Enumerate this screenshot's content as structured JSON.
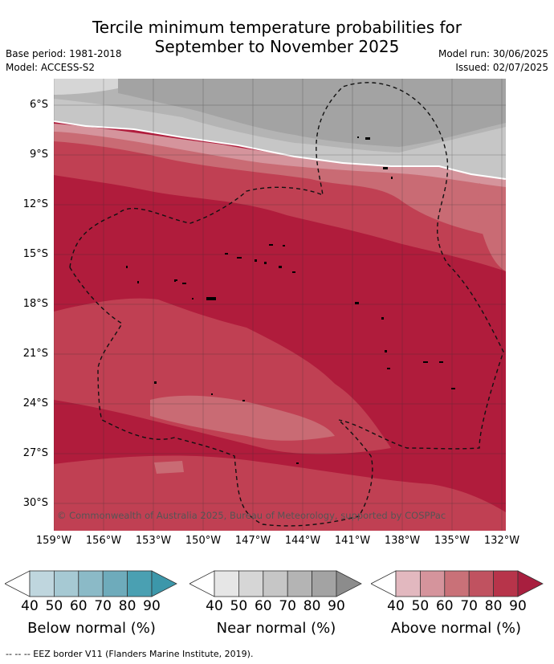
{
  "title_line1": "Tercile minimum temperature probabilities for",
  "title_line2": "September to November 2025",
  "base_period": "Base period: 1981-2018",
  "model": "Model: ACCESS-S2",
  "model_run": "Model run: 30/06/2025",
  "issued": "Issued: 02/07/2025",
  "copyright": "© Commonwealth of Australia 2025, Bureau of Meteorology, supported by COSPPac",
  "lat_labels": [
    "6°S",
    "9°S",
    "12°S",
    "15°S",
    "18°S",
    "21°S",
    "24°S",
    "27°S",
    "30°S"
  ],
  "lon_labels": [
    "159°W",
    "156°W",
    "153°W",
    "150°W",
    "147°W",
    "144°W",
    "141°W",
    "138°W",
    "135°W",
    "132°W"
  ],
  "legend": {
    "below": {
      "label": "Below normal (%)",
      "ticks": [
        "40",
        "50",
        "60",
        "70",
        "80",
        "90"
      ],
      "colors": [
        "#bfd6de",
        "#a6c9d3",
        "#8bbac7",
        "#6eabbb",
        "#4aa0b2"
      ]
    },
    "near": {
      "label": "Near normal (%)",
      "ticks": [
        "40",
        "50",
        "60",
        "70",
        "80",
        "90"
      ],
      "colors": [
        "#e6e6e6",
        "#d6d6d6",
        "#c6c6c6",
        "#b4b4b4",
        "#a3a3a3"
      ]
    },
    "above": {
      "label": "Above normal (%)",
      "ticks": [
        "40",
        "50",
        "60",
        "70",
        "80",
        "90"
      ],
      "colors": [
        "#e2b8bf",
        "#d5949c",
        "#c97178",
        "#c05260",
        "#b7344a"
      ]
    }
  },
  "footnote": "--  --  -- EEZ border V11 (Flanders Marine Institute, 2019)."
}
